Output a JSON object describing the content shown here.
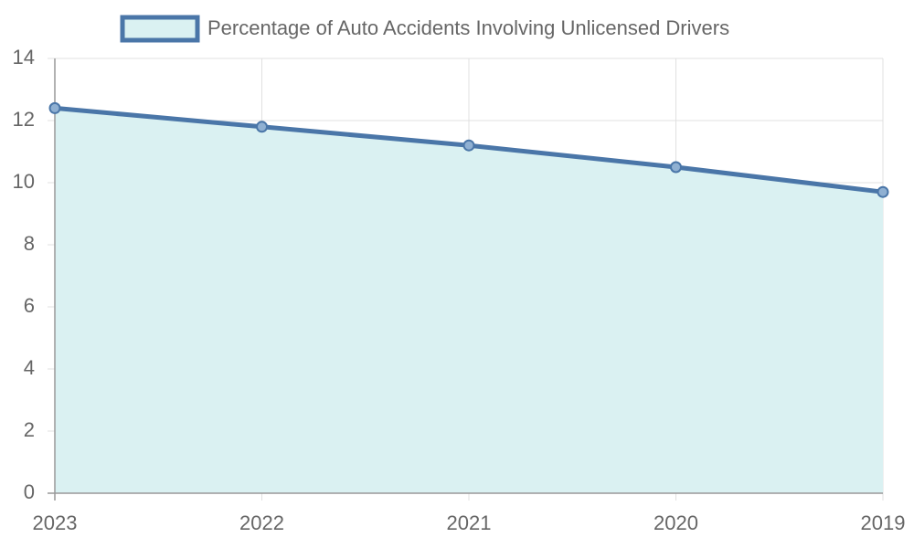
{
  "chart_data": {
    "type": "line",
    "categories": [
      "2023",
      "2022",
      "2021",
      "2020",
      "2019"
    ],
    "series": [
      {
        "name": "Percentage of Auto Accidents Involving Unlicensed Drivers",
        "color": "#4a76a8",
        "fill_color": "#daf1f2",
        "values": [
          12.4,
          11.8,
          11.2,
          10.5,
          9.7
        ]
      }
    ],
    "ylim": [
      0,
      14
    ],
    "yticks": [
      0,
      2,
      4,
      6,
      8,
      10,
      12,
      14
    ],
    "grid": true,
    "legend": "top"
  }
}
